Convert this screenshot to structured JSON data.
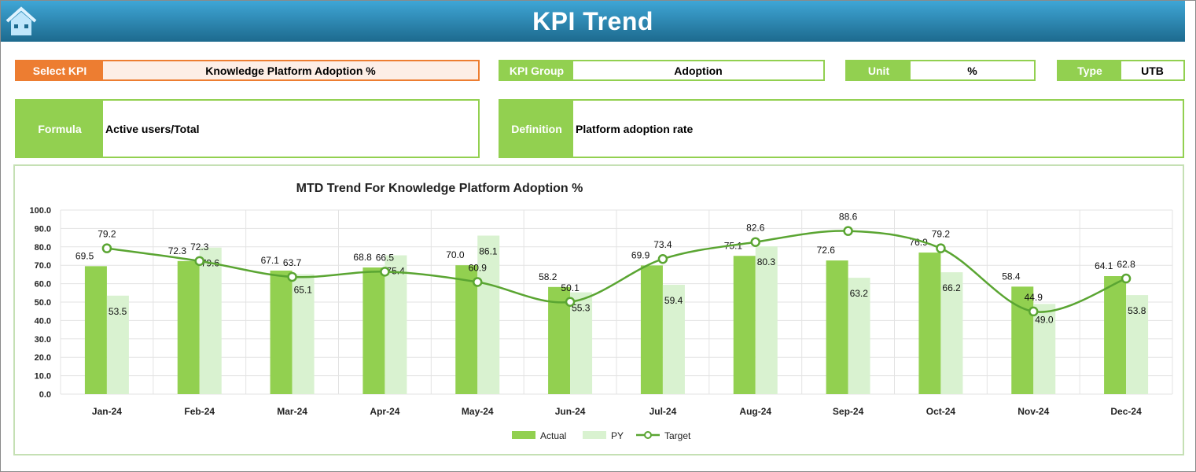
{
  "header": {
    "title": "KPI Trend",
    "home_icon": "home-icon"
  },
  "fields": {
    "select_kpi": {
      "label": "Select KPI",
      "value": "Knowledge Platform Adoption %"
    },
    "kpi_group": {
      "label": "KPI Group",
      "value": "Adoption"
    },
    "unit": {
      "label": "Unit",
      "value": "%"
    },
    "type": {
      "label": "Type",
      "value": "UTB"
    },
    "formula": {
      "label": "Formula",
      "value": "Active users/Total"
    },
    "definition": {
      "label": "Definition",
      "value": "Platform adoption rate"
    }
  },
  "colors": {
    "actual": "#92d050",
    "py": "#d9f2d0",
    "target": "#5aa532",
    "kpi_accent": "#ed7d31"
  },
  "chart_data": {
    "type": "bar",
    "title": "MTD Trend For Knowledge Platform Adoption %",
    "categories": [
      "Jan-24",
      "Feb-24",
      "Mar-24",
      "Apr-24",
      "May-24",
      "Jun-24",
      "Jul-24",
      "Aug-24",
      "Sep-24",
      "Oct-24",
      "Nov-24",
      "Dec-24"
    ],
    "series": [
      {
        "name": "Actual",
        "type": "bar",
        "values": [
          69.5,
          72.3,
          67.1,
          68.8,
          70.0,
          58.2,
          69.9,
          75.1,
          72.6,
          76.9,
          58.4,
          64.1
        ]
      },
      {
        "name": "PY",
        "type": "bar",
        "values": [
          53.5,
          79.6,
          65.1,
          75.4,
          86.1,
          55.3,
          59.4,
          80.3,
          63.2,
          66.2,
          49.0,
          53.8
        ]
      },
      {
        "name": "Target",
        "type": "line",
        "values": [
          79.2,
          72.3,
          63.7,
          66.5,
          60.9,
          50.1,
          73.4,
          82.6,
          88.6,
          79.2,
          44.9,
          62.8
        ]
      }
    ],
    "ylim": [
      0,
      100
    ],
    "yticks": [
      "0.0",
      "10.0",
      "20.0",
      "30.0",
      "40.0",
      "50.0",
      "60.0",
      "70.0",
      "80.0",
      "90.0",
      "100.0"
    ],
    "grid": true,
    "legend": "bottom"
  }
}
